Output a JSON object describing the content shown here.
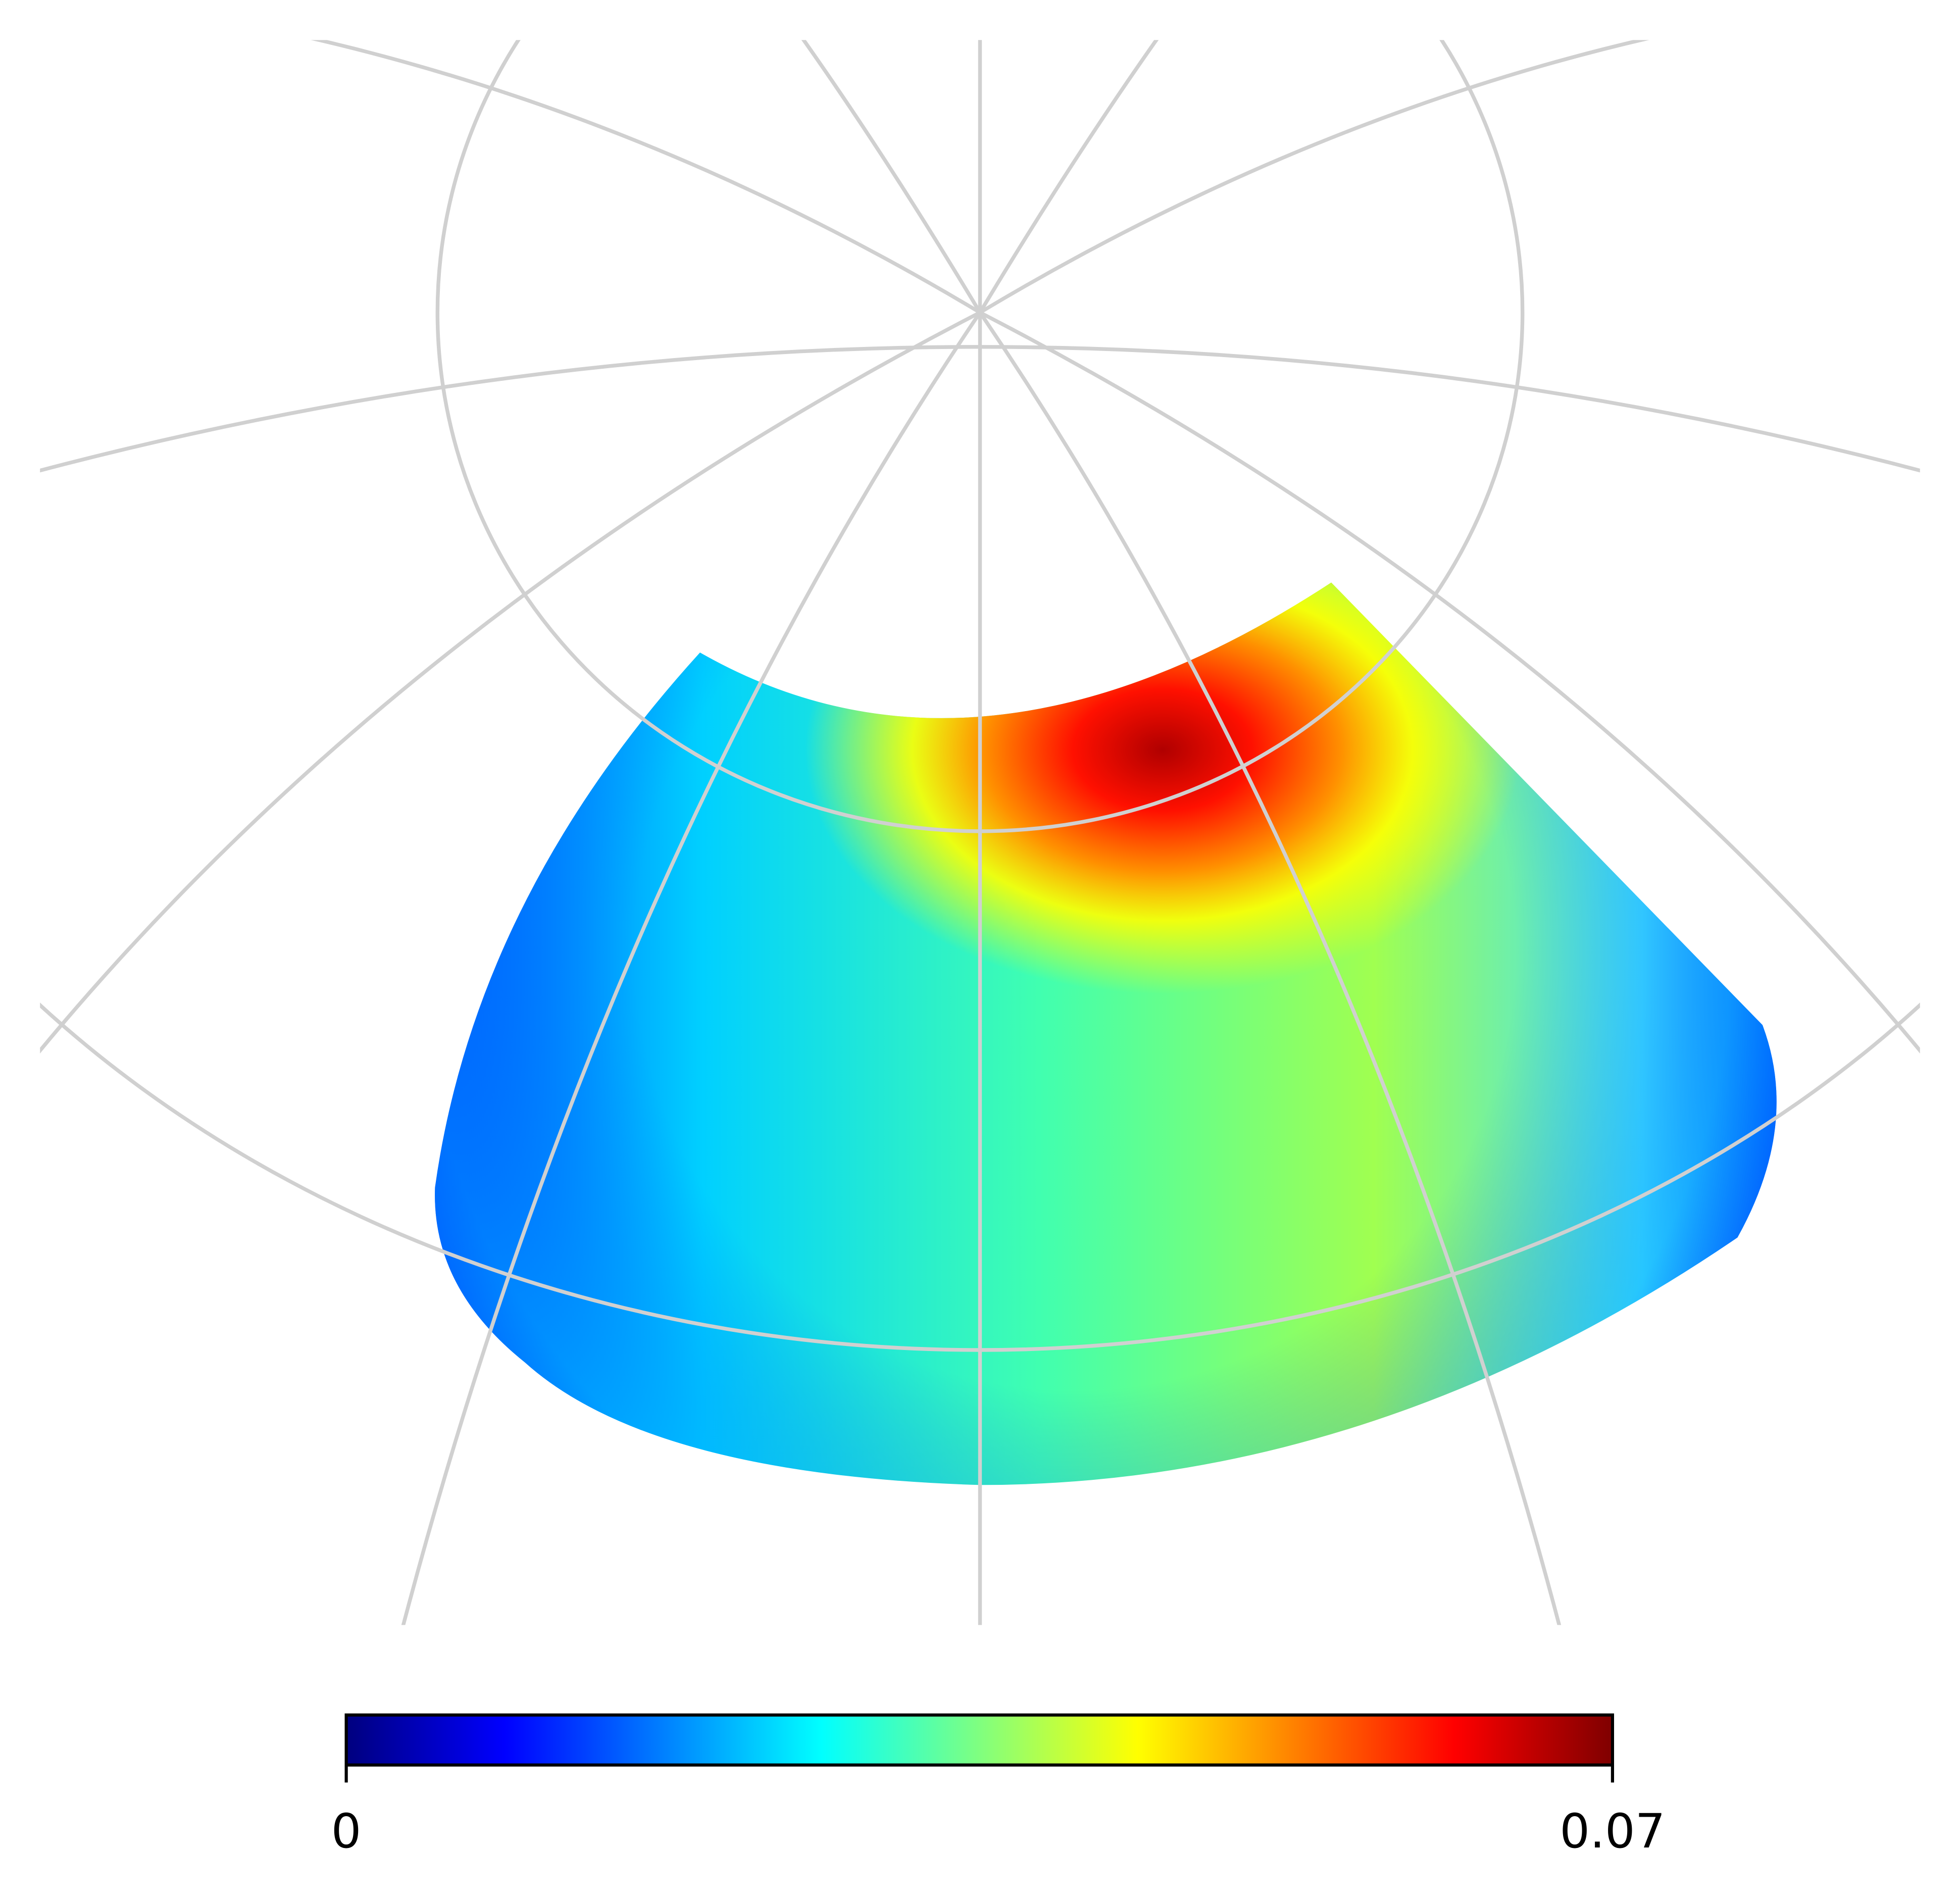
{
  "chart_data": {
    "type": "map",
    "colormap": "jet",
    "colorbar": {
      "lim": [
        0,
        0.07
      ],
      "ticks": [
        0,
        0.07
      ]
    }
  }
}
